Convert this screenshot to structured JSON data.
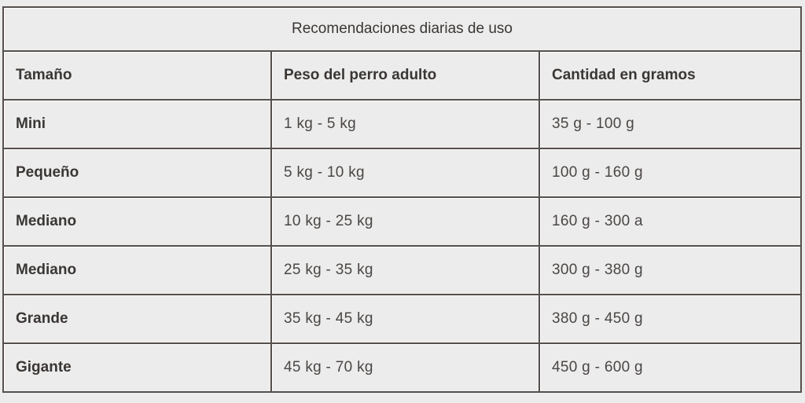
{
  "table": {
    "title": "Recomendaciones diarias de uso",
    "headers": [
      "Tamaño",
      "Peso del perro adulto",
      "Cantidad en gramos"
    ],
    "rows": [
      [
        "Mini",
        "1 kg - 5 kg",
        "35 g - 100 g"
      ],
      [
        "Pequeño",
        "5 kg - 10 kg",
        "100 g - 160 g"
      ],
      [
        "Mediano",
        "10 kg - 25 kg",
        "160 g - 300 a"
      ],
      [
        "Mediano",
        "25 kg - 35 kg",
        "300 g - 380 g"
      ],
      [
        "Grande",
        "35 kg - 45 kg",
        "380 g - 450 g"
      ],
      [
        "Gigante",
        "45 kg - 70 kg",
        "450 g - 600 g"
      ]
    ]
  }
}
